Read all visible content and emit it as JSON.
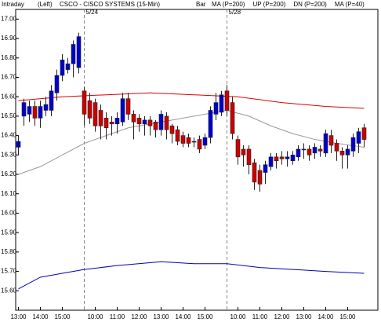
{
  "chart_data": {
    "type": "candlestick",
    "label": "Intraday",
    "axis_side": "(Left)",
    "title": "CSCO - CISCO SYSTEMS (15-Min)",
    "style_label": "Bar",
    "up_color": "#0000cc",
    "down_color": "#cc0000",
    "xlim": [
      -0.5,
      65.5
    ],
    "ylim": [
      15.5,
      17.05
    ],
    "yticks": [
      {
        "value": 15.6,
        "label": "15.60"
      },
      {
        "value": 15.7,
        "label": "15.70"
      },
      {
        "value": 15.8,
        "label": "15.80"
      },
      {
        "value": 15.9,
        "label": "15.90"
      },
      {
        "value": 16.0,
        "label": "16.00"
      },
      {
        "value": 16.1,
        "label": "16.10"
      },
      {
        "value": 16.2,
        "label": "16.20"
      },
      {
        "value": 16.3,
        "label": "16.30"
      },
      {
        "value": 16.4,
        "label": "16.40"
      },
      {
        "value": 16.5,
        "label": "16.50"
      },
      {
        "value": 16.6,
        "label": "16.60"
      },
      {
        "value": 16.7,
        "label": "16.70"
      },
      {
        "value": 16.8,
        "label": "16.80"
      },
      {
        "value": 16.9,
        "label": "16.90"
      },
      {
        "value": 17.0,
        "label": "17.00"
      }
    ],
    "xticks": [
      {
        "value": 0,
        "label": "13:00"
      },
      {
        "value": 4,
        "label": "14:00"
      },
      {
        "value": 8,
        "label": "15:00"
      },
      {
        "value": 14,
        "label": "10:00"
      },
      {
        "value": 18,
        "label": "11:00"
      },
      {
        "value": 22,
        "label": "12:00"
      },
      {
        "value": 26,
        "label": "13:00"
      },
      {
        "value": 30,
        "label": "14:00"
      },
      {
        "value": 34,
        "label": "15:00"
      },
      {
        "value": 40,
        "label": "10:00"
      },
      {
        "value": 44,
        "label": "11:00"
      },
      {
        "value": 48,
        "label": "12:00"
      },
      {
        "value": 52,
        "label": "13:00"
      },
      {
        "value": 56,
        "label": "14:00"
      },
      {
        "value": 60,
        "label": "15:00"
      }
    ],
    "dividers": [
      {
        "x": 12,
        "label": "5/24"
      },
      {
        "x": 38,
        "label": "5/28"
      }
    ],
    "x": [
      0,
      1,
      2,
      3,
      4,
      5,
      6,
      7,
      8,
      9,
      10,
      11,
      12,
      13,
      14,
      15,
      16,
      17,
      18,
      19,
      20,
      21,
      22,
      23,
      24,
      25,
      26,
      27,
      28,
      29,
      30,
      31,
      32,
      33,
      34,
      35,
      36,
      37,
      38,
      39,
      40,
      41,
      42,
      43,
      44,
      45,
      46,
      47,
      48,
      49,
      50,
      51,
      52,
      53,
      54,
      55,
      56,
      57,
      58,
      59,
      60,
      61,
      62,
      63
    ],
    "open": [
      16.34,
      16.5,
      16.51,
      16.55,
      16.49,
      16.53,
      16.53,
      16.62,
      16.71,
      16.74,
      16.77,
      16.75,
      16.63,
      16.58,
      16.57,
      16.53,
      16.49,
      16.47,
      16.46,
      16.47,
      16.59,
      16.51,
      16.49,
      16.46,
      16.48,
      16.47,
      16.43,
      16.5,
      16.45,
      16.43,
      16.4,
      16.39,
      16.37,
      16.38,
      16.35,
      16.39,
      16.51,
      16.52,
      16.63,
      16.57,
      16.38,
      16.33,
      16.33,
      16.26,
      16.22,
      16.21,
      16.24,
      16.29,
      16.29,
      16.28,
      16.27,
      16.29,
      16.33,
      16.33,
      16.31,
      16.33,
      16.31,
      16.4,
      16.36,
      16.32,
      16.3,
      16.32,
      16.36,
      16.44
    ],
    "high": [
      16.4,
      16.59,
      16.58,
      16.58,
      16.58,
      16.6,
      16.66,
      16.74,
      16.82,
      16.8,
      16.89,
      16.93,
      16.65,
      16.62,
      16.59,
      16.56,
      16.52,
      16.5,
      16.52,
      16.62,
      16.62,
      16.53,
      16.51,
      16.5,
      16.5,
      16.48,
      16.53,
      16.52,
      16.46,
      16.45,
      16.42,
      16.41,
      16.39,
      16.4,
      16.41,
      16.55,
      16.62,
      16.63,
      16.66,
      16.6,
      16.4,
      16.35,
      16.35,
      16.28,
      16.25,
      16.27,
      16.31,
      16.31,
      16.32,
      16.32,
      16.32,
      16.35,
      16.36,
      16.35,
      16.36,
      16.35,
      16.43,
      16.43,
      16.38,
      16.34,
      16.35,
      16.41,
      16.44,
      16.46
    ],
    "low": [
      16.3,
      16.45,
      16.47,
      16.45,
      16.44,
      16.5,
      16.5,
      16.58,
      16.68,
      16.72,
      16.7,
      16.72,
      16.45,
      16.46,
      16.42,
      16.38,
      16.38,
      16.4,
      16.41,
      16.45,
      16.48,
      16.38,
      16.42,
      16.4,
      16.4,
      16.39,
      16.4,
      16.38,
      16.36,
      16.35,
      16.34,
      16.34,
      16.34,
      16.31,
      16.33,
      16.36,
      16.48,
      16.5,
      16.5,
      16.38,
      16.25,
      16.24,
      16.2,
      16.12,
      16.11,
      16.15,
      16.22,
      16.23,
      16.25,
      16.24,
      16.25,
      16.27,
      16.28,
      16.27,
      16.28,
      16.29,
      16.29,
      16.31,
      16.27,
      16.23,
      16.23,
      16.29,
      16.31,
      16.34
    ],
    "close": [
      16.37,
      16.57,
      16.55,
      16.49,
      16.55,
      16.56,
      16.63,
      16.71,
      16.79,
      16.77,
      16.87,
      16.91,
      16.51,
      16.49,
      16.45,
      16.45,
      16.44,
      16.46,
      16.49,
      16.59,
      16.51,
      16.47,
      16.46,
      16.48,
      16.45,
      16.43,
      16.51,
      16.43,
      16.41,
      16.37,
      16.36,
      16.36,
      16.37,
      16.33,
      16.39,
      16.53,
      16.57,
      16.61,
      16.53,
      16.41,
      16.29,
      16.3,
      16.25,
      16.16,
      16.15,
      16.25,
      16.29,
      16.27,
      16.28,
      16.29,
      16.3,
      16.33,
      16.33,
      16.3,
      16.34,
      16.32,
      16.41,
      16.35,
      16.32,
      16.3,
      16.33,
      16.39,
      16.42,
      16.38
    ],
    "series": [
      {
        "name": "MA (P=200)",
        "color": "#dd0000",
        "x": [
          0,
          8,
          16,
          24,
          32,
          40,
          48,
          56,
          63
        ],
        "values": [
          16.58,
          16.6,
          16.61,
          16.62,
          16.61,
          16.6,
          16.57,
          16.55,
          16.54
        ]
      },
      {
        "name": "UP (P=200)",
        "color": "#00bb00"
      },
      {
        "name": "DN (P=200)",
        "color": "#0000bb",
        "x": [
          0,
          4,
          8,
          12,
          18,
          26,
          32,
          38,
          44,
          50,
          56,
          63
        ],
        "values": [
          15.61,
          15.67,
          15.69,
          15.71,
          15.73,
          15.75,
          15.74,
          15.74,
          15.72,
          15.71,
          15.7,
          15.69
        ]
      },
      {
        "name": "MA (P=40)",
        "color": "#999999",
        "x": [
          0,
          4,
          8,
          12,
          16,
          20,
          24,
          28,
          32,
          38,
          42,
          46,
          50,
          54,
          58,
          63
        ],
        "values": [
          16.2,
          16.24,
          16.3,
          16.36,
          16.4,
          16.44,
          16.46,
          16.48,
          16.5,
          16.53,
          16.5,
          16.45,
          16.41,
          16.38,
          16.36,
          16.34
        ]
      }
    ]
  }
}
